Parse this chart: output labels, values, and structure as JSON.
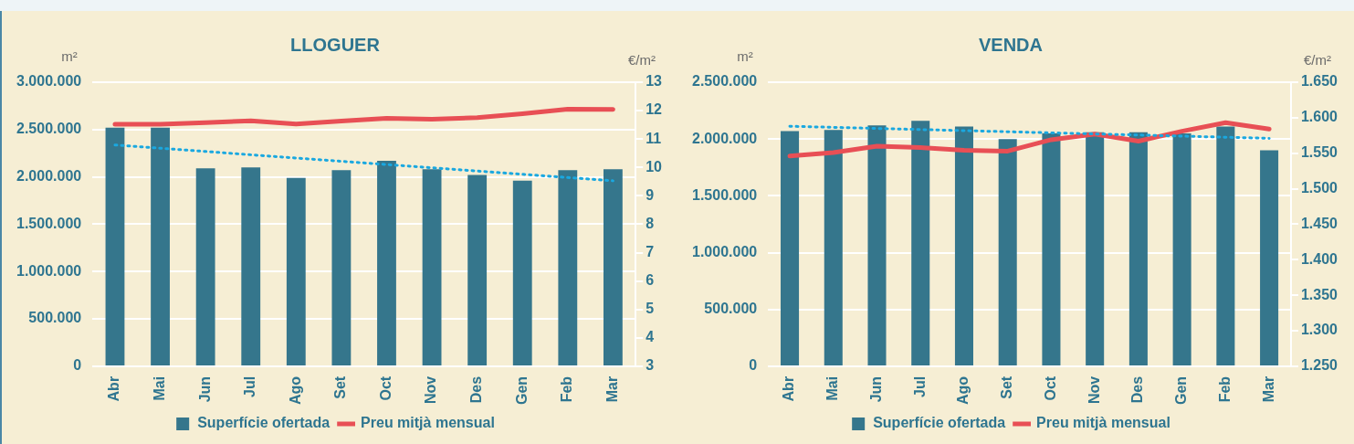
{
  "chart_data": [
    {
      "type": "bar",
      "title": "LLOGUER",
      "ylabel": "m²",
      "y2label": "€/m²",
      "categories": [
        "Abr",
        "Mai",
        "Jun",
        "Jul",
        "Ago",
        "Set",
        "Oct",
        "Nov",
        "Des",
        "Gen",
        "Feb",
        "Mar"
      ],
      "series": [
        {
          "name": "Superfície ofertada",
          "color": "#35768c",
          "values": [
            2520000,
            2520000,
            2090000,
            2100000,
            1990000,
            2070000,
            2170000,
            2080000,
            2020000,
            1960000,
            2070000,
            2080000
          ]
        },
        {
          "name": "Preu mitjà mensual",
          "type": "line",
          "axis": "y2",
          "color": "#e84f55",
          "values": [
            11.52,
            11.52,
            11.58,
            11.64,
            11.53,
            11.63,
            11.73,
            11.7,
            11.75,
            11.89,
            12.05,
            12.04
          ]
        },
        {
          "type": "line",
          "axis": "y2",
          "color": "#1aa8e0",
          "line_style": "dotted",
          "x": [
            "Abr",
            "Mar"
          ],
          "values": [
            10.79,
            9.53
          ]
        }
      ],
      "ylim": [
        0,
        3000000
      ],
      "yticks": [
        {
          "value": 0,
          "label": "0"
        },
        {
          "value": 500000,
          "label": "500.000"
        },
        {
          "value": 1000000,
          "label": "1.000.000"
        },
        {
          "value": 1500000,
          "label": "1.500.000"
        },
        {
          "value": 2000000,
          "label": "2.000.000"
        },
        {
          "value": 2500000,
          "label": "2.500.000"
        },
        {
          "value": 3000000,
          "label": "3.000.000"
        }
      ],
      "y2lim": [
        3,
        13
      ],
      "y2ticks": [
        3,
        4,
        5,
        6,
        7,
        8,
        9,
        10,
        11,
        12,
        13
      ],
      "grid": "y",
      "legend": "bottom",
      "marker": "none"
    },
    {
      "type": "bar",
      "title": "VENDA",
      "ylabel": "m²",
      "y2label": "€/m²",
      "categories": [
        "Abr",
        "Mai",
        "Jun",
        "Jul",
        "Ago",
        "Set",
        "Oct",
        "Nov",
        "Des",
        "Gen",
        "Feb",
        "Mar"
      ],
      "series": [
        {
          "name": "Superfície ofertada",
          "color": "#35768c",
          "values": [
            2070000,
            2080000,
            2120000,
            2160000,
            2110000,
            2000000,
            2050000,
            2060000,
            2060000,
            2050000,
            2110000,
            1900000
          ]
        },
        {
          "name": "Preu mitjà mensual",
          "type": "line",
          "axis": "y2",
          "color": "#e84f55",
          "values": [
            1546,
            1551,
            1560,
            1558,
            1554,
            1553,
            1569,
            1577,
            1567,
            1581,
            1593,
            1584
          ]
        },
        {
          "type": "line",
          "axis": "y2",
          "color": "#1aa8e0",
          "line_style": "dotted",
          "x": [
            "Abr",
            "Mar"
          ],
          "values": [
            1588,
            1571
          ]
        }
      ],
      "ylim": [
        0,
        2500000
      ],
      "yticks": [
        {
          "value": 0,
          "label": "0"
        },
        {
          "value": 500000,
          "label": "500.000"
        },
        {
          "value": 1000000,
          "label": "1.000.000"
        },
        {
          "value": 1500000,
          "label": "1.500.000"
        },
        {
          "value": 2000000,
          "label": "2.000.000"
        },
        {
          "value": 2500000,
          "label": "2.500.000"
        }
      ],
      "y2lim": [
        1250,
        1650
      ],
      "y2ticks": [
        {
          "value": 1250,
          "label": "1.250"
        },
        {
          "value": 1300,
          "label": "1.300"
        },
        {
          "value": 1350,
          "label": "1.350"
        },
        {
          "value": 1400,
          "label": "1.400"
        },
        {
          "value": 1450,
          "label": "1.450"
        },
        {
          "value": 1500,
          "label": "1.500"
        },
        {
          "value": 1550,
          "label": "1.550"
        },
        {
          "value": 1600,
          "label": "1.600"
        },
        {
          "value": 1650,
          "label": "1.650"
        }
      ],
      "grid": "y",
      "legend": "bottom",
      "marker": "none"
    }
  ]
}
